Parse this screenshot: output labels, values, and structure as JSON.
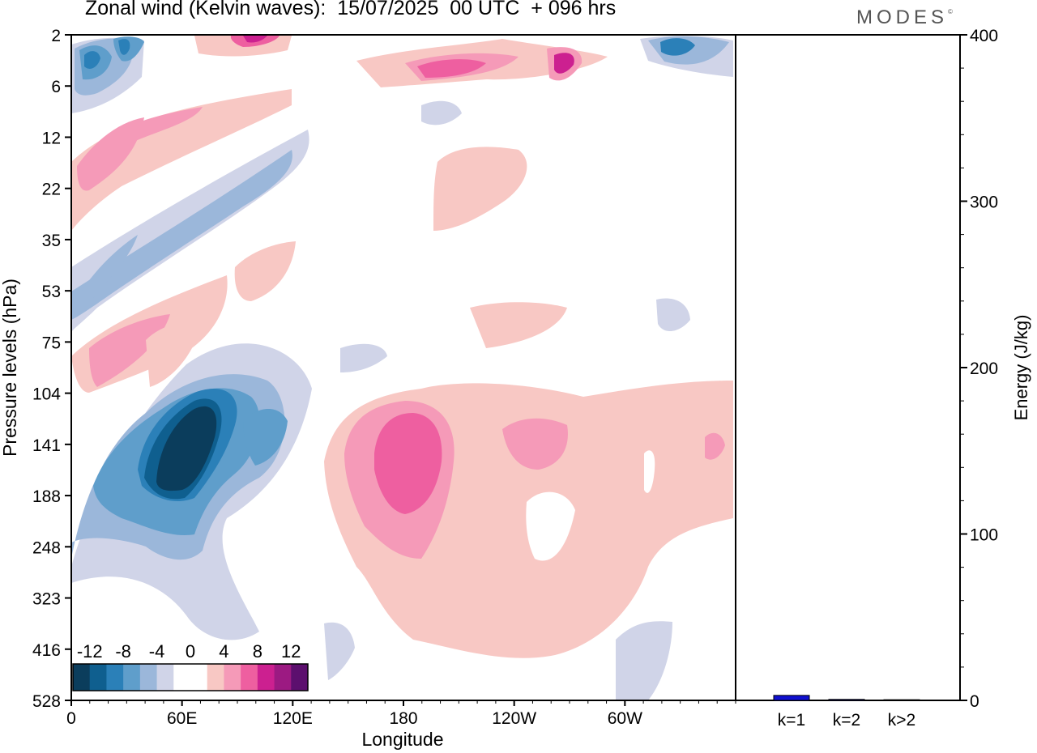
{
  "title": "Zonal wind (Kelvin waves):  15/07/2025  00 UTC  + 096 hrs",
  "logo": "MODES",
  "chart_data": [
    {
      "type": "heatmap",
      "name": "zonal-wind-hovmoller",
      "xlabel": "Longitude",
      "ylabel": "Pressure levels (hPa)",
      "x_ticks": [
        "0",
        "60E",
        "120E",
        "180",
        "120W",
        "60W"
      ],
      "x_tick_degrees": [
        0,
        60,
        120,
        180,
        240,
        300
      ],
      "xlim": [
        0,
        360
      ],
      "y_ticks": [
        2,
        6,
        12,
        22,
        35,
        53,
        75,
        104,
        141,
        188,
        248,
        323,
        416,
        528
      ],
      "ylim": [
        2,
        528
      ],
      "colorbar": {
        "levels": [
          -12,
          -8,
          -4,
          0,
          4,
          8,
          12
        ],
        "labels": [
          "-12",
          "-8",
          "-4",
          "0",
          "4",
          "8",
          "12"
        ],
        "colors": [
          "#0b3d5c",
          "#0f5f8f",
          "#2b80b8",
          "#5f9ecb",
          "#9bb7da",
          "#d0d4e8",
          "#ffffff",
          "#ffffff",
          "#f8c8c4",
          "#f59ab8",
          "#ee5fa0",
          "#cc2090",
          "#9c1a82",
          "#5c0f6e"
        ]
      },
      "features": [
        {
          "label": "upper-level easterly band",
          "lon": [
            0,
            130
          ],
          "p_hPa": [
            2,
            12
          ],
          "value": -10
        },
        {
          "label": "westerly band",
          "lon": [
            0,
            120
          ],
          "p_hPa": [
            12,
            35
          ],
          "value": 6
        },
        {
          "label": "easterly band",
          "lon": [
            0,
            130
          ],
          "p_hPa": [
            15,
            60
          ],
          "value": -6
        },
        {
          "label": "westerly band",
          "lon": [
            10,
            80
          ],
          "p_hPa": [
            60,
            110
          ],
          "value": 6
        },
        {
          "label": "strong easterly core",
          "lon": [
            35,
            80
          ],
          "p_hPa": [
            110,
            180
          ],
          "value": -14
        },
        {
          "label": "strong westerly core",
          "lon": [
            155,
            200
          ],
          "p_hPa": [
            120,
            220
          ],
          "value": 8
        },
        {
          "label": "westerly region",
          "lon": [
            135,
            350
          ],
          "p_hPa": [
            100,
            430
          ],
          "value": 3
        },
        {
          "label": "westerly patch",
          "lon": [
            190,
            250
          ],
          "p_hPa": [
            4,
            8
          ],
          "value": 8
        }
      ]
    },
    {
      "type": "bar",
      "name": "kelvin-wave-energy",
      "ylabel": "Energy (J/kg)",
      "categories": [
        "k=1",
        "k=2",
        "k>2"
      ],
      "values": [
        3,
        0.6,
        0.4
      ],
      "ylim": [
        0,
        400
      ],
      "y_ticks": [
        0,
        100,
        200,
        300,
        400
      ],
      "bar_color": "#1010d0"
    }
  ]
}
